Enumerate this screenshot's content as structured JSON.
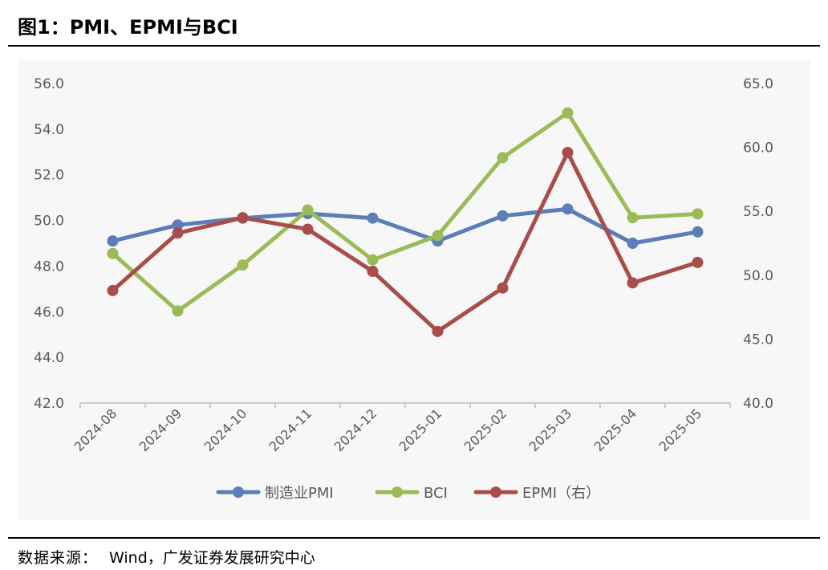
{
  "figure": {
    "title": "图1：PMI、EPMI与BCI",
    "source_label": "数据来源：",
    "source_value": "Wind，广发证券发展研究中心"
  },
  "chart_data": {
    "type": "line",
    "categories": [
      "2024-08",
      "2024-09",
      "2024-10",
      "2024-11",
      "2024-12",
      "2025-01",
      "2025-02",
      "2025-03",
      "2025-04",
      "2025-05"
    ],
    "y_left": {
      "ticks": [
        "42.0",
        "44.0",
        "46.0",
        "48.0",
        "50.0",
        "52.0",
        "54.0",
        "56.0"
      ],
      "ylim": [
        42,
        56
      ]
    },
    "y_right": {
      "ticks": [
        "40.0",
        "45.0",
        "50.0",
        "55.0",
        "60.0",
        "65.0"
      ],
      "ylim": [
        40,
        65
      ]
    },
    "grid": false,
    "legend_position": "bottom",
    "series": [
      {
        "name": "制造业PMI",
        "axis": "left",
        "color": "#5B7DB8",
        "values": [
          49.1,
          49.8,
          50.1,
          50.3,
          50.1,
          49.1,
          50.2,
          50.5,
          49.0,
          49.5
        ]
      },
      {
        "name": "BCI",
        "axis": "right",
        "color": "#9BBB59",
        "values": [
          51.7,
          47.2,
          50.8,
          55.1,
          51.2,
          53.1,
          59.2,
          62.7,
          54.5,
          54.8
        ]
      },
      {
        "name": "EPMI（右）",
        "axis": "right",
        "color": "#A84D4A",
        "values": [
          48.8,
          53.3,
          54.5,
          53.6,
          50.3,
          45.6,
          49.0,
          59.6,
          49.4,
          51.0
        ]
      }
    ]
  }
}
